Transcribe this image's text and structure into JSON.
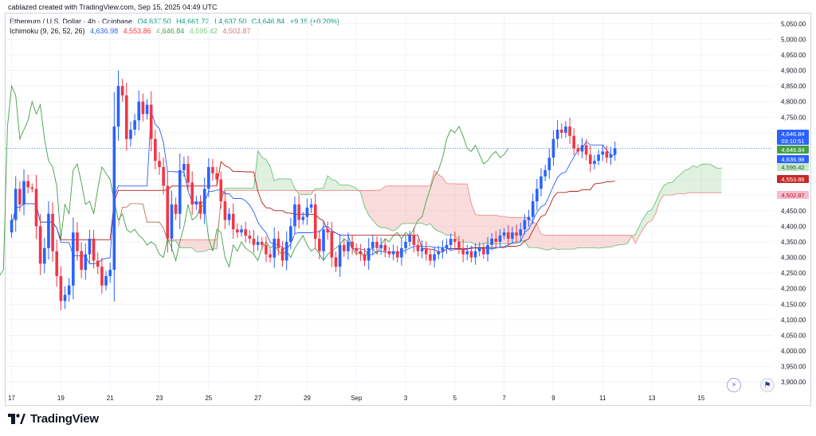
{
  "header": {
    "attribution": "cablazed created with TradingView.com, Sep 15, 2025 04:49 UTC"
  },
  "legend": {
    "symbol": "Ethereum / U.S. Dollar · 4h · Coinbase",
    "open": "O4,637.50",
    "high": "H4,661.72",
    "low": "L4,637.50",
    "close": "C4,646.84",
    "change": "+9.15 (+0.20%)",
    "indicator": "Ichimoku (9, 26, 52, 26)",
    "ind_values": [
      "4,636.98",
      "4,553.86",
      "4,646.84",
      "4,595.42",
      "4,502.87"
    ]
  },
  "price_tags": {
    "last": "4,646.84",
    "countdown": "03:10:51",
    "close": "4,646.84",
    "conversion": "4,636.98",
    "span_a": "4,595.42",
    "base": "4,553.86",
    "span_b": "4,502.87"
  },
  "brand": "TradingView",
  "colors": {
    "up": "#2962ff",
    "down": "#f23645",
    "conversion": "#2962ff",
    "base": "#b71c1c",
    "lagging": "#43a047",
    "cloud_bull": "#a5d6a7",
    "cloud_bear": "#ef9a9a"
  },
  "chart_data": {
    "type": "candlestick",
    "title": "Ethereum / U.S. Dollar · 4h · Coinbase",
    "ylim": [
      3875,
      5075
    ],
    "y_ticks": [
      "5,050.00",
      "5,000.00",
      "4,950.00",
      "4,900.00",
      "4,850.00",
      "4,800.00",
      "4,750.00",
      "4,700.00",
      "4,650.00",
      "4,600.00",
      "4,550.00",
      "4,500.00",
      "4,450.00",
      "4,400.00",
      "4,350.00",
      "4,300.00",
      "4,250.00",
      "4,200.00",
      "4,150.00",
      "4,100.00",
      "4,050.00",
      "4,000.00",
      "3,950.00",
      "3,900.00"
    ],
    "y_tick_values": [
      5050,
      5000,
      4950,
      4900,
      4850,
      4800,
      4750,
      4700,
      4650,
      4600,
      4550,
      4500,
      4450,
      4400,
      4350,
      4300,
      4250,
      4200,
      4150,
      4100,
      4050,
      4000,
      3950,
      3900
    ],
    "x_ticks": [
      {
        "label": "17",
        "i": 0
      },
      {
        "label": "19",
        "i": 12
      },
      {
        "label": "21",
        "i": 24
      },
      {
        "label": "23",
        "i": 36
      },
      {
        "label": "25",
        "i": 48
      },
      {
        "label": "27",
        "i": 60
      },
      {
        "label": "29",
        "i": 72
      },
      {
        "label": "Sep",
        "i": 84
      },
      {
        "label": "3",
        "i": 96
      },
      {
        "label": "5",
        "i": 108
      },
      {
        "label": "7",
        "i": 120
      },
      {
        "label": "9",
        "i": 132
      },
      {
        "label": "11",
        "i": 144
      },
      {
        "label": "13",
        "i": 156
      },
      {
        "label": "15",
        "i": 168
      }
    ],
    "n_slots": 186,
    "closes": [
      4420,
      4520,
      4470,
      4545,
      4525,
      4520,
      4400,
      4280,
      4330,
      4440,
      4320,
      4240,
      4160,
      4180,
      4210,
      4380,
      4320,
      4260,
      4310,
      4360,
      4290,
      4270,
      4210,
      4240,
      4260,
      4720,
      4850,
      4820,
      4680,
      4710,
      4740,
      4800,
      4760,
      4790,
      4680,
      4610,
      4590,
      4530,
      4360,
      4470,
      4440,
      4580,
      4600,
      4540,
      4470,
      4480,
      4440,
      4520,
      4590,
      4570,
      4550,
      4480,
      4420,
      4440,
      4390,
      4380,
      4390,
      4370,
      4360,
      4340,
      4350,
      4340,
      4310,
      4300,
      4360,
      4330,
      4290,
      4350,
      4400,
      4470,
      4420,
      4430,
      4460,
      4470,
      4360,
      4320,
      4390,
      4380,
      4300,
      4270,
      4340,
      4320,
      4350,
      4330,
      4320,
      4310,
      4290,
      4330,
      4350,
      4330,
      4340,
      4320,
      4310,
      4320,
      4300,
      4330,
      4350,
      4370,
      4340,
      4320,
      4330,
      4310,
      4290,
      4310,
      4320,
      4330,
      4340,
      4360,
      4350,
      4330,
      4310,
      4320,
      4300,
      4320,
      4330,
      4310,
      4340,
      4360,
      4350,
      4370,
      4380,
      4360,
      4380,
      4370,
      4390,
      4420,
      4430,
      4480,
      4520,
      4560,
      4580,
      4620,
      4680,
      4710,
      4700,
      4720,
      4690,
      4650,
      4640,
      4660,
      4630,
      4600,
      4610,
      4630,
      4640,
      4620,
      4630,
      4650
    ]
  }
}
